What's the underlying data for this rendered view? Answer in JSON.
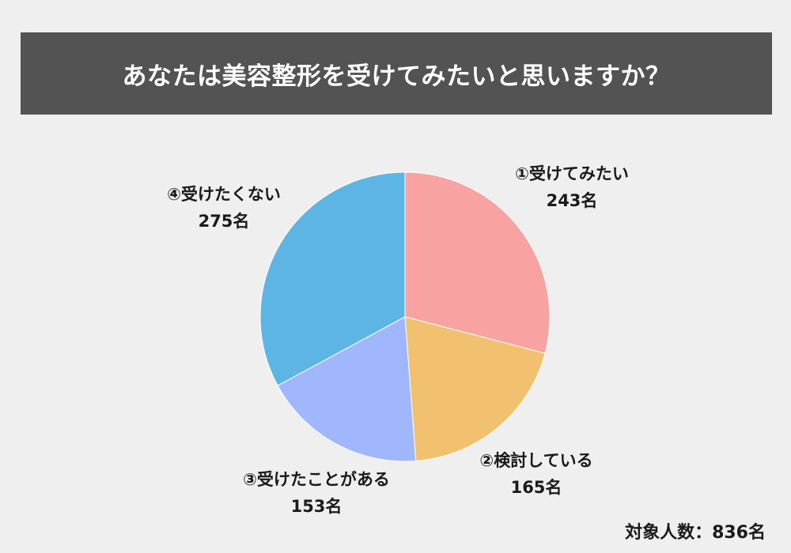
{
  "title": "あなたは美容整形を受けてみたいと思いますか？",
  "total_label": "対象人数：836名",
  "colors": {
    "background": "#efefef",
    "title_bar": "#535353",
    "title_text": "#ffffff"
  },
  "chart_data": {
    "type": "pie",
    "title": "あなたは美容整形を受けてみたいと思いますか？",
    "total": 836,
    "slices": [
      {
        "name": "①受けてみたい",
        "value": 243,
        "value_label": "243名",
        "color": "#f9a2a2"
      },
      {
        "name": "②検討している",
        "value": 165,
        "value_label": "165名",
        "color": "#f2c16f"
      },
      {
        "name": "③受けたことがある",
        "value": 153,
        "value_label": "153名",
        "color": "#a0b6fd"
      },
      {
        "name": "④受けたくない",
        "value": 275,
        "value_label": "275名",
        "color": "#5cb5e3"
      }
    ]
  }
}
